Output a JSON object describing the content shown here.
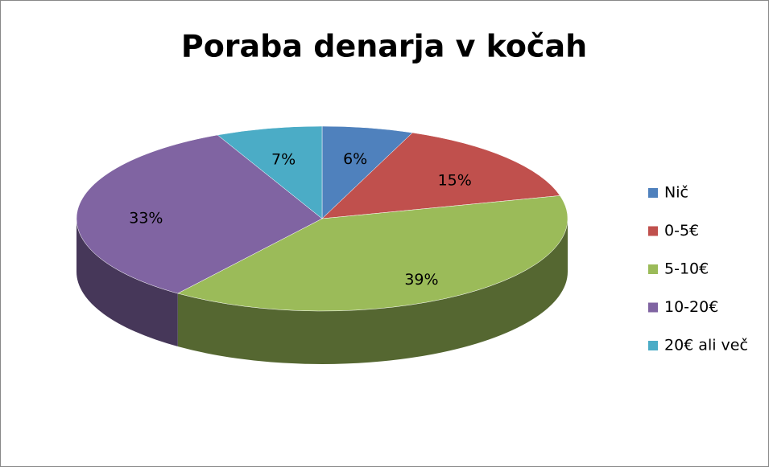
{
  "chart_data": {
    "type": "pie",
    "title": "Poraba denarja v kočah",
    "categories": [
      "Nič",
      "0-5€",
      "5-10€",
      "10-20€",
      "20€ ali več"
    ],
    "values": [
      6,
      15,
      39,
      33,
      7
    ],
    "value_labels": [
      "6%",
      "15%",
      "39%",
      "33%",
      "7%"
    ],
    "colors": [
      "#4f81bd",
      "#c0504d",
      "#9bbb59",
      "#8064a2",
      "#4bacc6"
    ],
    "legend": "right"
  }
}
